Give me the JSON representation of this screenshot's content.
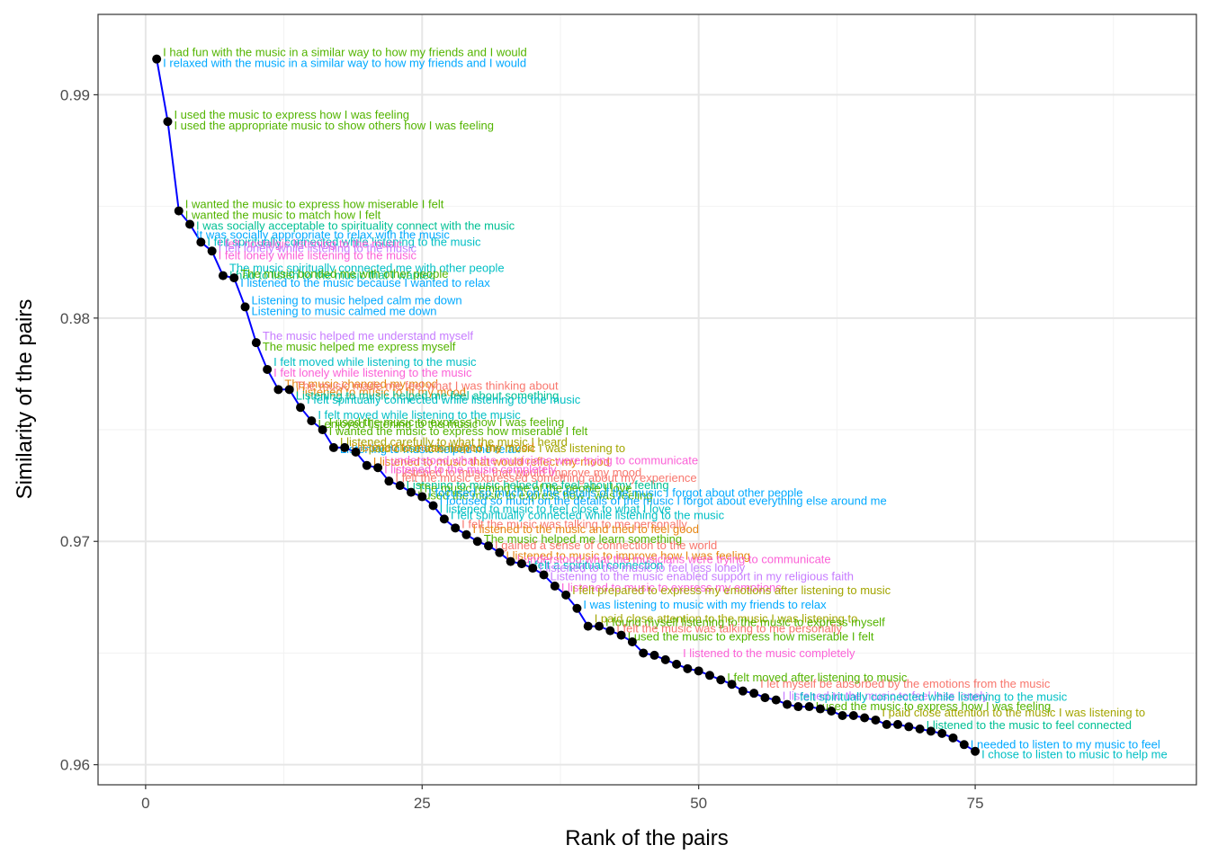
{
  "chart_data": {
    "type": "line",
    "xlabel": "Rank of the pairs",
    "ylabel": "Similarity of the pairs",
    "xlim": [
      -4.3,
      95
    ],
    "ylim": [
      0.9591,
      0.9936
    ],
    "x_ticks": [
      0,
      25,
      50,
      75
    ],
    "y_ticks": [
      0.96,
      0.97,
      0.98,
      0.99
    ],
    "x_tick_labels": [
      "0",
      "25",
      "50",
      "75"
    ],
    "y_tick_labels": [
      "0.96",
      "0.97",
      "0.98",
      "0.99"
    ],
    "grid": true,
    "theme": "bw",
    "line_color": "#0000ff",
    "point_color": "#000000",
    "points": [
      {
        "x": 1,
        "y": 0.9916
      },
      {
        "x": 2,
        "y": 0.9888
      },
      {
        "x": 3,
        "y": 0.9848
      },
      {
        "x": 4,
        "y": 0.9842
      },
      {
        "x": 5,
        "y": 0.9834
      },
      {
        "x": 6,
        "y": 0.983
      },
      {
        "x": 7,
        "y": 0.9819
      },
      {
        "x": 8,
        "y": 0.9818
      },
      {
        "x": 9,
        "y": 0.9805
      },
      {
        "x": 10,
        "y": 0.9789
      },
      {
        "x": 11,
        "y": 0.9777
      },
      {
        "x": 12,
        "y": 0.9768
      },
      {
        "x": 13,
        "y": 0.9768
      },
      {
        "x": 14,
        "y": 0.976
      },
      {
        "x": 15,
        "y": 0.9754
      },
      {
        "x": 16,
        "y": 0.975
      },
      {
        "x": 17,
        "y": 0.9742
      },
      {
        "x": 18,
        "y": 0.9742
      },
      {
        "x": 19,
        "y": 0.974
      },
      {
        "x": 20,
        "y": 0.9734
      },
      {
        "x": 21,
        "y": 0.9733
      },
      {
        "x": 22,
        "y": 0.9727
      },
      {
        "x": 23,
        "y": 0.9725
      },
      {
        "x": 24,
        "y": 0.9722
      },
      {
        "x": 25,
        "y": 0.972
      },
      {
        "x": 26,
        "y": 0.9716
      },
      {
        "x": 27,
        "y": 0.971
      },
      {
        "x": 28,
        "y": 0.9706
      },
      {
        "x": 29,
        "y": 0.9703
      },
      {
        "x": 30,
        "y": 0.97
      },
      {
        "x": 31,
        "y": 0.9698
      },
      {
        "x": 32,
        "y": 0.9695
      },
      {
        "x": 33,
        "y": 0.9691
      },
      {
        "x": 34,
        "y": 0.969
      },
      {
        "x": 35,
        "y": 0.9688
      },
      {
        "x": 36,
        "y": 0.9685
      },
      {
        "x": 37,
        "y": 0.968
      },
      {
        "x": 38,
        "y": 0.9676
      },
      {
        "x": 39,
        "y": 0.967
      },
      {
        "x": 40,
        "y": 0.9662
      },
      {
        "x": 41,
        "y": 0.9662
      },
      {
        "x": 42,
        "y": 0.966
      },
      {
        "x": 43,
        "y": 0.9658
      },
      {
        "x": 44,
        "y": 0.9655
      },
      {
        "x": 45,
        "y": 0.965
      },
      {
        "x": 46,
        "y": 0.9649
      },
      {
        "x": 47,
        "y": 0.9647
      },
      {
        "x": 48,
        "y": 0.9645
      },
      {
        "x": 49,
        "y": 0.9643
      },
      {
        "x": 50,
        "y": 0.9642
      },
      {
        "x": 51,
        "y": 0.964
      },
      {
        "x": 52,
        "y": 0.9638
      },
      {
        "x": 53,
        "y": 0.9636
      },
      {
        "x": 54,
        "y": 0.9633
      },
      {
        "x": 55,
        "y": 0.9632
      },
      {
        "x": 56,
        "y": 0.963
      },
      {
        "x": 57,
        "y": 0.9629
      },
      {
        "x": 58,
        "y": 0.9627
      },
      {
        "x": 59,
        "y": 0.9626
      },
      {
        "x": 60,
        "y": 0.9626
      },
      {
        "x": 61,
        "y": 0.9625
      },
      {
        "x": 62,
        "y": 0.9624
      },
      {
        "x": 63,
        "y": 0.9622
      },
      {
        "x": 64,
        "y": 0.9622
      },
      {
        "x": 65,
        "y": 0.9621
      },
      {
        "x": 66,
        "y": 0.962
      },
      {
        "x": 67,
        "y": 0.9618
      },
      {
        "x": 68,
        "y": 0.9618
      },
      {
        "x": 69,
        "y": 0.9617
      },
      {
        "x": 70,
        "y": 0.9616
      },
      {
        "x": 71,
        "y": 0.9615
      },
      {
        "x": 72,
        "y": 0.9614
      },
      {
        "x": 73,
        "y": 0.9612
      },
      {
        "x": 74,
        "y": 0.9609
      },
      {
        "x": 75,
        "y": 0.9606
      }
    ],
    "annotations": [
      {
        "text": "I had fun with the music in a similar way to how my friends and I would",
        "x": 1,
        "y": 0.9916,
        "dy": -7,
        "color": "#53b400"
      },
      {
        "text": "I relaxed with the music in a similar way to how my friends and I would",
        "x": 1,
        "y": 0.9916,
        "dy": 5,
        "color": "#00a9ff"
      },
      {
        "text": "I used the music to express how I was feeling",
        "x": 2,
        "y": 0.9888,
        "dy": -7,
        "color": "#53b400"
      },
      {
        "text": "I used the appropriate music to show others how I was feeling",
        "x": 2,
        "y": 0.9888,
        "dy": 5,
        "color": "#53b400"
      },
      {
        "text": "I wanted the music to express how miserable I felt",
        "x": 3,
        "y": 0.9848,
        "dy": -7,
        "color": "#53b400"
      },
      {
        "text": "I wanted the music to match how I felt",
        "x": 3,
        "y": 0.9848,
        "dy": 5,
        "color": "#53b400"
      },
      {
        "text": "I was socially acceptable to spirituality connect with the music",
        "x": 4,
        "y": 0.9842,
        "dy": 2,
        "color": "#00c094"
      },
      {
        "text": "It was socially appropriate to relax with the music",
        "x": 4,
        "y": 0.9842,
        "dy": 12,
        "color": "#00a9ff"
      },
      {
        "text": "I felt spiritually connected while listening to the music",
        "x": 5,
        "y": 0.9834,
        "dy": 0,
        "color": "#00bfc4"
      },
      {
        "text": "I felt nostalgic listening to the music",
        "x": 6,
        "y": 0.983,
        "dy": -8,
        "color": "#fb61d7"
      },
      {
        "text": "I felt lonely while listening to the music",
        "x": 6,
        "y": 0.983,
        "dy": -3,
        "color": "#c77cff"
      },
      {
        "text": "I felt lonely while listening to the music",
        "x": 6,
        "y": 0.983,
        "dy": 5,
        "color": "#fb61d7"
      },
      {
        "text": "The music spiritually connected me with other people",
        "x": 7,
        "y": 0.9819,
        "dy": -8,
        "color": "#00bfc4"
      },
      {
        "text": "I had to listen to the music that I wanted",
        "x": 7,
        "y": 0.9819,
        "dy": 0,
        "color": "#00c094"
      },
      {
        "text": "The music bonded me with other people",
        "x": 8,
        "y": 0.9818,
        "dy": -4,
        "color": "#53b400"
      },
      {
        "text": "I listened to the music because I wanted to relax",
        "x": 8,
        "y": 0.9818,
        "dy": 6,
        "color": "#00a9ff"
      },
      {
        "text": "Listening to music helped calm me down",
        "x": 9,
        "y": 0.9805,
        "dy": -7,
        "color": "#00a9ff"
      },
      {
        "text": "Listening to music calmed me down",
        "x": 9,
        "y": 0.9805,
        "dy": 5,
        "color": "#00a9ff"
      },
      {
        "text": "The music helped me understand myself",
        "x": 10,
        "y": 0.9789,
        "dy": -7,
        "color": "#c77cff"
      },
      {
        "text": "The music helped me express myself",
        "x": 10,
        "y": 0.9789,
        "dy": 5,
        "color": "#53b400"
      },
      {
        "text": "I felt moved while listening to the music",
        "x": 11,
        "y": 0.9777,
        "dy": -8,
        "color": "#00bfc4"
      },
      {
        "text": "I felt lonely while listening to the music",
        "x": 11,
        "y": 0.9777,
        "dy": 4,
        "color": "#fb61d7"
      },
      {
        "text": "The music changed my mood",
        "x": 12,
        "y": 0.9768,
        "dy": -6,
        "color": "#e68613"
      },
      {
        "text": "The music made me feel what I was thinking about",
        "x": 13,
        "y": 0.9768,
        "dy": -4,
        "color": "#f8766d"
      },
      {
        "text": "I listened to music to fit my mood",
        "x": 13,
        "y": 0.9768,
        "dy": 3,
        "color": "#e68613"
      },
      {
        "text": "Listening to music helped me feel about something",
        "x": 13,
        "y": 0.9768,
        "dy": 7,
        "color": "#00c094"
      },
      {
        "text": "I felt spiritually connected while listening to the music",
        "x": 14,
        "y": 0.976,
        "dy": -8,
        "color": "#00bfc4"
      },
      {
        "text": "I felt moved while listening to the music",
        "x": 15,
        "y": 0.9754,
        "dy": -6,
        "color": "#00bfc4"
      },
      {
        "text": "I used the music to express how I was feeling",
        "x": 16,
        "y": 0.975,
        "dy": -8,
        "color": "#53b400"
      },
      {
        "text": "I enjoyed listening to the music",
        "x": 15,
        "y": 0.9754,
        "dy": 4,
        "color": "#53b400"
      },
      {
        "text": "I wanted the music to express how miserable I felt",
        "x": 16,
        "y": 0.975,
        "dy": 2,
        "color": "#53b400"
      },
      {
        "text": "I listened carefully to what the music I heard",
        "x": 17,
        "y": 0.9742,
        "dy": -6,
        "color": "#a3a500"
      },
      {
        "text": "Listening to music helped me relax",
        "x": 17,
        "y": 0.9742,
        "dy": 2,
        "color": "#00a9ff"
      },
      {
        "text": "I listened to music helped my mood",
        "x": 18,
        "y": 0.9742,
        "dy": 0,
        "color": "#e68613"
      },
      {
        "text": "I paid close attention to the music I was listening to",
        "x": 19,
        "y": 0.974,
        "dy": -4,
        "color": "#a3a500"
      },
      {
        "text": "I listened to music that would reflect my mood",
        "x": 20,
        "y": 0.9734,
        "dy": -4,
        "color": "#e68613"
      },
      {
        "text": "I understood what the musicians were trying to communicate",
        "x": 21,
        "y": 0.9733,
        "dy": -8,
        "color": "#fb61d7"
      },
      {
        "text": "I listened to music that would improve my mood",
        "x": 22,
        "y": 0.9727,
        "dy": -9,
        "color": "#f8766d"
      },
      {
        "text": "I listened to the music completely",
        "x": 21,
        "y": 0.9733,
        "dy": 2,
        "color": "#fb61d7"
      },
      {
        "text": "I felt the music expressed something about my experience",
        "x": 22,
        "y": 0.9727,
        "dy": -3,
        "color": "#f8766d"
      },
      {
        "text": "Listening to music helped me feel about my feeling",
        "x": 23,
        "y": 0.9725,
        "dy": 0,
        "color": "#00c094"
      },
      {
        "text": "The music remind me of the people I love",
        "x": 24,
        "y": 0.9722,
        "dy": -4,
        "color": "#53b400"
      },
      {
        "text": "I used the music to express how I was feeling",
        "x": 24,
        "y": 0.9722,
        "dy": 4,
        "color": "#53b400"
      },
      {
        "text": "I focused so much on the details of the music I forgot about other people",
        "x": 25,
        "y": 0.972,
        "dy": -4,
        "color": "#00a9ff"
      },
      {
        "text": "I focused so much on the details of the music I forgot about everything else around me",
        "x": 26,
        "y": 0.9716,
        "dy": -5,
        "color": "#00a9ff"
      },
      {
        "text": "I listened to music to feel close to what I love",
        "x": 26,
        "y": 0.9716,
        "dy": 4,
        "color": "#00bfc4"
      },
      {
        "text": "I felt spiritually connected while listening to the music",
        "x": 27,
        "y": 0.971,
        "dy": -4,
        "color": "#00bfc4"
      },
      {
        "text": "I felt the music was talking to me personally",
        "x": 28,
        "y": 0.9706,
        "dy": -4,
        "color": "#f8766d"
      },
      {
        "text": "I listened to the music and tried to feel good",
        "x": 29,
        "y": 0.9703,
        "dy": -6,
        "color": "#e68613"
      },
      {
        "text": "The music helped me learn something",
        "x": 30,
        "y": 0.97,
        "dy": -2,
        "color": "#53b400"
      },
      {
        "text": "I gained a sense of connection to the world",
        "x": 31,
        "y": 0.9698,
        "dy": 0,
        "color": "#f8766d"
      },
      {
        "text": "I listened to music to improve how I was feeling",
        "x": 32,
        "y": 0.9695,
        "dy": 4,
        "color": "#e68613"
      },
      {
        "text": "I understood what the musicians were trying to communicate",
        "x": 33,
        "y": 0.9691,
        "dy": -2,
        "color": "#fb61d7"
      },
      {
        "text": "I felt a spiritual connection",
        "x": 34,
        "y": 0.969,
        "dy": 2,
        "color": "#00bfc4"
      },
      {
        "text": "I listened to the music to feel less lonely",
        "x": 35,
        "y": 0.9688,
        "dy": 0,
        "color": "#c77cff"
      },
      {
        "text": "Listening to the music enabled support in my religious faith",
        "x": 36,
        "y": 0.9685,
        "dy": 2,
        "color": "#c77cff"
      },
      {
        "text": "I listened to music to express my emotions",
        "x": 37,
        "y": 0.968,
        "dy": 2,
        "color": "#fb61d7"
      },
      {
        "text": "I felt prepared to express my emotions after listening to music",
        "x": 38,
        "y": 0.9676,
        "dy": -5,
        "color": "#a3a500"
      },
      {
        "text": "I was listening to music with my friends to relax",
        "x": 39,
        "y": 0.967,
        "dy": -4,
        "color": "#00a9ff"
      },
      {
        "text": "I paid close attention to the music I was listening to",
        "x": 40,
        "y": 0.9662,
        "dy": -8,
        "color": "#a3a500"
      },
      {
        "text": "I found myself listening to the music to express myself",
        "x": 41,
        "y": 0.9662,
        "dy": -4,
        "color": "#53b400"
      },
      {
        "text": "I felt the music was talking to me personally",
        "x": 42,
        "y": 0.966,
        "dy": -2,
        "color": "#f8766d"
      },
      {
        "text": "I used the music to express how miserable I felt",
        "x": 43,
        "y": 0.9658,
        "dy": 2,
        "color": "#53b400"
      },
      {
        "text": "I listened to the music completely",
        "x": 48,
        "y": 0.9645,
        "dy": -12,
        "color": "#fb61d7"
      },
      {
        "text": "I let myself be absorbed by the emotions from the music",
        "x": 55,
        "y": 0.9632,
        "dy": -10,
        "color": "#f8766d"
      },
      {
        "text": "I felt moved after listening to music",
        "x": 52,
        "y": 0.9638,
        "dy": -2,
        "color": "#53b400"
      },
      {
        "text": "I listened to the music to feel less lonely",
        "x": 57,
        "y": 0.9629,
        "dy": -4,
        "color": "#c77cff"
      },
      {
        "text": "I felt spiritually connected while listening to the music",
        "x": 58,
        "y": 0.9627,
        "dy": -8,
        "color": "#00bfc4"
      },
      {
        "text": "I used the music to express how I was feeling",
        "x": 60,
        "y": 0.9626,
        "dy": 0,
        "color": "#53b400"
      },
      {
        "text": "I paid close attention to the music I was listening to",
        "x": 66,
        "y": 0.962,
        "dy": -8,
        "color": "#a3a500"
      },
      {
        "text": "I listened to the music to feel connected",
        "x": 70,
        "y": 0.9616,
        "dy": -4,
        "color": "#00c094"
      },
      {
        "text": "I needed to listen to my music to feel",
        "x": 74,
        "y": 0.9609,
        "dy": 0,
        "color": "#00a9ff"
      },
      {
        "text": "I chose to listen to music to help me",
        "x": 75,
        "y": 0.9606,
        "dy": 4,
        "color": "#00bfc4"
      }
    ]
  }
}
